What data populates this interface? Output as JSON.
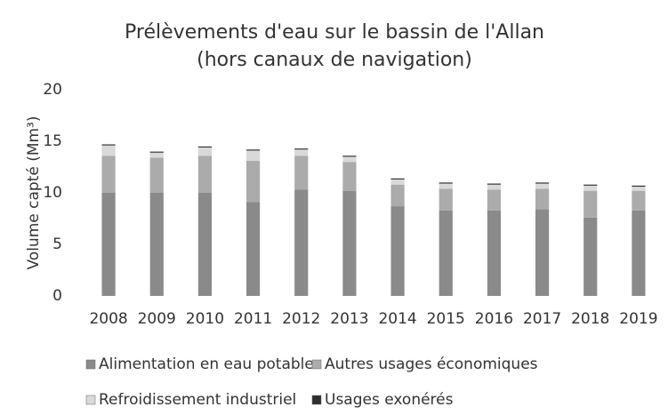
{
  "chart_data": {
    "type": "stacked-bar",
    "title": "Prélèvements d'eau sur le bassin de l'Allan",
    "subtitle": "(hors canaux de navigation)",
    "y_label": "Volume capté (Mm³)",
    "categories": [
      "2008",
      "2009",
      "2010",
      "2011",
      "2012",
      "2013",
      "2014",
      "2015",
      "2016",
      "2017",
      "2018",
      "2019"
    ],
    "series": [
      {
        "name": "Alimentation en eau potable",
        "color": "#8a8a8a",
        "values": [
          10.0,
          10.0,
          10.0,
          9.1,
          10.3,
          10.2,
          8.7,
          8.3,
          8.3,
          8.4,
          7.6,
          8.3
        ]
      },
      {
        "name": "Autres usages économiques",
        "color": "#ababab",
        "values": [
          3.6,
          3.4,
          3.6,
          4.0,
          3.3,
          2.8,
          2.1,
          2.1,
          2.0,
          2.0,
          2.6,
          1.9
        ]
      },
      {
        "name": "Refroidissement industriel",
        "color": "#d9d9d9",
        "values": [
          1.0,
          0.5,
          0.8,
          1.0,
          0.6,
          0.5,
          0.5,
          0.5,
          0.5,
          0.5,
          0.5,
          0.4
        ]
      },
      {
        "name": "Usages exonérés",
        "color": "#2e2e2e",
        "values": [
          0.1,
          0.1,
          0.1,
          0.1,
          0.1,
          0.1,
          0.1,
          0.1,
          0.1,
          0.1,
          0.1,
          0.1
        ]
      }
    ],
    "ylim": [
      0,
      20
    ],
    "yticks": [
      0,
      5,
      10,
      15,
      20
    ],
    "grid": false
  }
}
